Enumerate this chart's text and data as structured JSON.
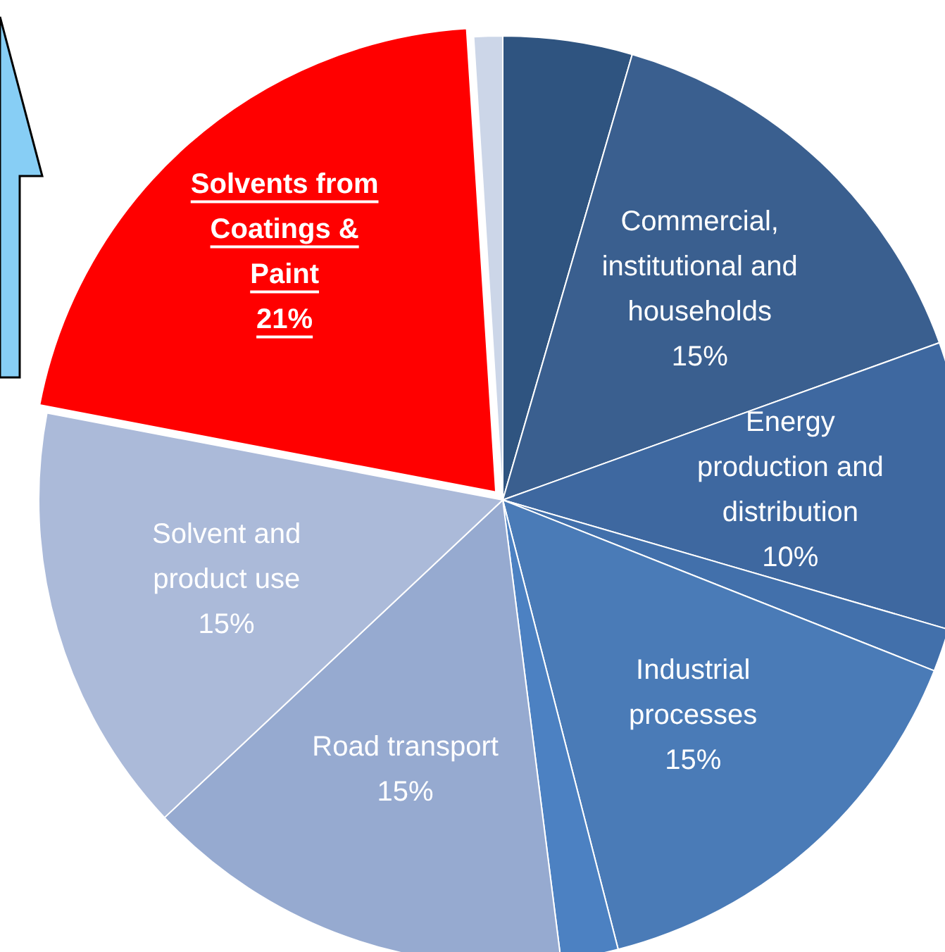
{
  "chart_data": {
    "type": "pie",
    "categories": [
      null,
      "Commercial, institutional and households",
      "Energy production and distribution",
      null,
      "Industrial processes",
      null,
      "Road transport",
      "Solvent and product use",
      "Solvents from Coatings & Paint",
      null
    ],
    "values": [
      4.5,
      15,
      10,
      1.5,
      15,
      2,
      15,
      15,
      21,
      1
    ],
    "value_labels": [
      null,
      "15%",
      "10%",
      null,
      "15%",
      null,
      "15%",
      "15%",
      "21%",
      null
    ],
    "colors": [
      "#2f5480",
      "#3a5f8f",
      "#3e68a0",
      "#4270ab",
      "#4a7bb7",
      "#4c81c2",
      "#96aad0",
      "#abbad9",
      "#ff0000",
      "#ccd6e8"
    ],
    "legend": false
  }
}
